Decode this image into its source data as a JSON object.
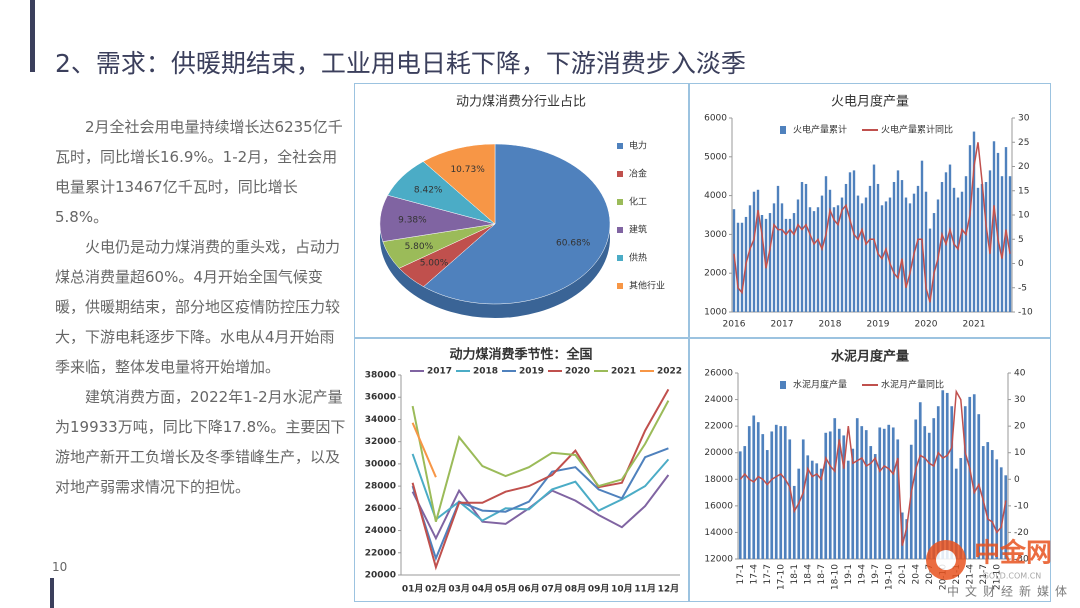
{
  "title": "2、需求：供暖期结束，工业用电日耗下降，下游消费步入淡季",
  "paragraphs": [
    "2月全社会用电量持续增长达6235亿千瓦时，同比增长16.9%。1-2月，全社会用电量累计13467亿千瓦时，同比增长5.8%。",
    "火电仍是动力煤消费的重头戏，占动力煤总消费量超60%。4月开始全国气候变暖，供暖期结束，部分地区疫情防控压力较大，下游电耗逐步下降。水电从4月开始雨季来临，整体发电量将开始增加。",
    "建筑消费方面，2022年1-2月水泥产量为19933万吨，同比下降17.8%。主要因下游地产新开工负增长及冬季错峰生产，以及对地产弱需求情况下的担忧。"
  ],
  "page_number": "10",
  "watermark": {
    "title": "中金网",
    "url": "GOLD.COM.CN",
    "subtitle": "中文财经新媒体"
  },
  "chart_data": [
    {
      "type": "pie",
      "title": "动力煤消费分行业占比",
      "categories": [
        "电力",
        "冶金",
        "化工",
        "建筑",
        "供热",
        "其他行业"
      ],
      "values": [
        60.68,
        5.0,
        5.8,
        9.38,
        8.42,
        10.73
      ],
      "value_labels": [
        "60.68%",
        "5.00%",
        "5.80%",
        "9.38%",
        "8.42%",
        "10.73%"
      ],
      "colors": [
        "#4f81bd",
        "#c0504d",
        "#9bbb59",
        "#8064a2",
        "#4bacc6",
        "#f79646"
      ]
    },
    {
      "type": "combo",
      "title": "火电月度产量",
      "ylim": [
        1000,
        6000
      ],
      "yticks": [
        1000,
        2000,
        3000,
        4000,
        5000,
        6000
      ],
      "y2lim": [
        -10,
        30
      ],
      "y2ticks": [
        -10,
        -5,
        0,
        5,
        10,
        15,
        20,
        25,
        30
      ],
      "categories": [
        "2016",
        null,
        null,
        null,
        null,
        null,
        null,
        null,
        null,
        null,
        null,
        null,
        "2017",
        null,
        null,
        null,
        null,
        null,
        null,
        null,
        null,
        null,
        null,
        null,
        "2018",
        null,
        null,
        null,
        null,
        null,
        null,
        null,
        null,
        null,
        null,
        null,
        "2019",
        null,
        null,
        null,
        null,
        null,
        null,
        null,
        null,
        null,
        null,
        null,
        "2020",
        null,
        null,
        null,
        null,
        null,
        null,
        null,
        null,
        null,
        null,
        null,
        "2021",
        null,
        null,
        null,
        null,
        null,
        null,
        null,
        null,
        null
      ],
      "series": [
        {
          "name": "火电产量累计",
          "type": "bar",
          "color": "#4f81bd",
          "values": [
            3650,
            3300,
            3300,
            3450,
            3750,
            4100,
            4150,
            3500,
            3400,
            3550,
            3800,
            4250,
            3800,
            3400,
            3400,
            3550,
            3900,
            4350,
            4300,
            3700,
            3600,
            3700,
            4000,
            4500,
            4150,
            3700,
            3750,
            3950,
            4300,
            4600,
            4650,
            4000,
            3800,
            3950,
            4250,
            4800,
            4300,
            3750,
            3850,
            3950,
            4350,
            4650,
            4400,
            3950,
            3800,
            4050,
            4250,
            4900,
            4100,
            3150,
            3550,
            3900,
            4350,
            4600,
            4800,
            4200,
            3950,
            4100,
            4500,
            5300,
            5650,
            4200,
            4300,
            4350,
            4650,
            5400,
            5100,
            4500,
            5250,
            4500
          ]
        },
        {
          "name": "火电产量累计同比",
          "type": "line",
          "axis": "y2",
          "color": "#c0504d",
          "values": [
            2,
            -5,
            -6,
            0,
            3,
            5,
            11,
            6,
            -1,
            3,
            8,
            7,
            7,
            6,
            7,
            6,
            8,
            7,
            8,
            6,
            4,
            5,
            3,
            6,
            11,
            9,
            8,
            11,
            12,
            9,
            6,
            5,
            7,
            4,
            5,
            5,
            2,
            1,
            3,
            0,
            -2,
            -3,
            1,
            -5,
            -2,
            2,
            5,
            5,
            -5,
            -8,
            -2,
            1,
            6,
            4,
            7,
            4,
            3,
            7,
            6,
            10,
            20,
            25,
            17,
            8,
            2,
            12,
            5,
            1,
            7,
            2
          ]
        }
      ]
    },
    {
      "type": "line",
      "title": "动力煤消费季节性：全国",
      "ylim": [
        20000,
        38000
      ],
      "yticks": [
        20000,
        22000,
        24000,
        26000,
        28000,
        30000,
        32000,
        34000,
        36000,
        38000
      ],
      "categories": [
        "01月",
        "02月",
        "03月",
        "04月",
        "05月",
        "06月",
        "07月",
        "08月",
        "09月",
        "10月",
        "11月",
        "12月"
      ],
      "series": [
        {
          "name": "2017",
          "color": "#8064a2",
          "values": [
            27500,
            23300,
            27600,
            24800,
            24600,
            26000,
            27600,
            26700,
            25400,
            24300,
            26200,
            29000
          ]
        },
        {
          "name": "2018",
          "color": "#4bacc6",
          "values": [
            30900,
            25000,
            26600,
            24900,
            26000,
            25900,
            27700,
            28400,
            25800,
            26800,
            28000,
            30400
          ]
        },
        {
          "name": "2019",
          "color": "#4f81bd",
          "values": [
            28000,
            21500,
            26600,
            25800,
            25700,
            26600,
            29300,
            29700,
            27700,
            26900,
            30600,
            31400
          ]
        },
        {
          "name": "2020",
          "color": "#c0504d",
          "values": [
            28300,
            20700,
            26500,
            26500,
            27500,
            28000,
            29000,
            31200,
            27900,
            28300,
            33000,
            36700
          ]
        },
        {
          "name": "2021",
          "color": "#9bbb59",
          "values": [
            35200,
            24800,
            32400,
            29800,
            28900,
            29700,
            31000,
            30800,
            28000,
            28600,
            31800,
            35700
          ]
        },
        {
          "name": "2022",
          "color": "#f79646",
          "values": [
            33700,
            28800,
            null,
            null,
            null,
            null,
            null,
            null,
            null,
            null,
            null,
            null
          ]
        }
      ]
    },
    {
      "type": "combo",
      "title": "水泥月度产量",
      "ylim": [
        12000,
        26000
      ],
      "yticks": [
        12000,
        14000,
        16000,
        18000,
        20000,
        22000,
        24000,
        26000
      ],
      "y2lim": [
        -30,
        40
      ],
      "y2ticks": [
        -30,
        -20,
        -10,
        0,
        10,
        20,
        30,
        40
      ],
      "categories": [
        "17-1",
        null,
        null,
        "17-4",
        null,
        null,
        "17-7",
        null,
        null,
        "17-10",
        null,
        null,
        "18-1",
        null,
        null,
        "18-4",
        null,
        null,
        "18-7",
        null,
        null,
        "18-10",
        null,
        null,
        "19-1",
        null,
        null,
        "19-4",
        null,
        null,
        "19-7",
        null,
        null,
        "19-10",
        null,
        null,
        "20-1",
        null,
        null,
        "20-4",
        null,
        null,
        "20-7",
        null,
        null,
        "20-10",
        null,
        null,
        "21-1",
        null,
        null,
        "21-4",
        null,
        null,
        "21-7",
        null,
        null,
        "21-10",
        null,
        null
      ],
      "series": [
        {
          "name": "水泥月度产量",
          "type": "bar",
          "color": "#4f81bd",
          "values": [
            20100,
            20500,
            22000,
            22800,
            22300,
            21400,
            20200,
            21600,
            22100,
            22000,
            22000,
            21000,
            17500,
            18800,
            21000,
            19800,
            19400,
            19200,
            18800,
            21500,
            21600,
            22600,
            21800,
            21300,
            19400,
            20300,
            22600,
            22000,
            21700,
            20500,
            19900,
            21900,
            21800,
            22100,
            21900,
            21000,
            15500,
            15000,
            20600,
            22500,
            23800,
            22000,
            21500,
            22600,
            23500,
            24700,
            24500,
            23500,
            18800,
            19600,
            23500,
            24200,
            24400,
            22900,
            20500,
            20800,
            20200,
            19500,
            18900,
            18300
          ]
        },
        {
          "name": "水泥月产量同比",
          "type": "line",
          "axis": "y2",
          "color": "#c0504d",
          "values": [
            0,
            2,
            0,
            -1,
            1,
            0,
            -2,
            0,
            1,
            2,
            0,
            -3,
            -12,
            -9,
            -5,
            4,
            1,
            2,
            0,
            8,
            5,
            3,
            15,
            4,
            20,
            6,
            7,
            8,
            5,
            6,
            8,
            3,
            5,
            4,
            2,
            8,
            -25,
            -18,
            -5,
            4,
            9,
            8,
            6,
            5,
            10,
            8,
            9,
            12,
            33,
            30,
            10,
            4,
            -5,
            -2,
            -8,
            -15,
            -16,
            -20,
            -18,
            -8
          ]
        }
      ]
    }
  ]
}
